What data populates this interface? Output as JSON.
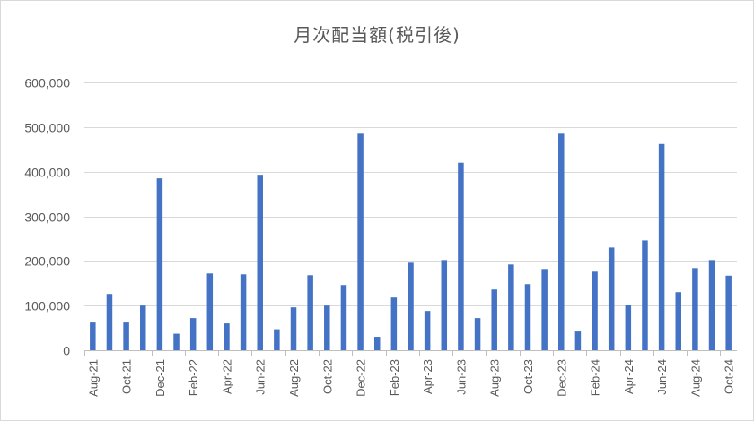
{
  "chart_data": {
    "type": "bar",
    "title": "月次配当額(税引後)",
    "xlabel": "",
    "ylabel": "",
    "ylim": [
      0,
      600000
    ],
    "yticks": [
      0,
      100000,
      200000,
      300000,
      400000,
      500000,
      600000
    ],
    "ytick_labels": [
      "0",
      "100,000",
      "200,000",
      "300,000",
      "400,000",
      "500,000",
      "600,000"
    ],
    "grid": true,
    "legend": "none",
    "bar_color": "#4472c4",
    "categories": [
      "Aug-21",
      "Sep-21",
      "Oct-21",
      "Nov-21",
      "Dec-21",
      "Jan-22",
      "Feb-22",
      "Mar-22",
      "Apr-22",
      "May-22",
      "Jun-22",
      "Jul-22",
      "Aug-22",
      "Sep-22",
      "Oct-22",
      "Nov-22",
      "Dec-22",
      "Jan-23",
      "Feb-23",
      "Mar-23",
      "Apr-23",
      "May-23",
      "Jun-23",
      "Jul-23",
      "Aug-23",
      "Sep-23",
      "Oct-23",
      "Nov-23",
      "Dec-23",
      "Jan-24",
      "Feb-24",
      "Mar-24",
      "Apr-24",
      "May-24",
      "Jun-24",
      "Jul-24",
      "Aug-24",
      "Sep-24",
      "Oct-24"
    ],
    "x_tick_labels": [
      "Aug-21",
      "",
      "Oct-21",
      "",
      "Dec-21",
      "",
      "Feb-22",
      "",
      "Apr-22",
      "",
      "Jun-22",
      "",
      "Aug-22",
      "",
      "Oct-22",
      "",
      "Dec-22",
      "",
      "Feb-23",
      "",
      "Apr-23",
      "",
      "Jun-23",
      "",
      "Aug-23",
      "",
      "Oct-23",
      "",
      "Dec-23",
      "",
      "Feb-24",
      "",
      "Apr-24",
      "",
      "Jun-24",
      "",
      "Aug-24",
      "",
      "Oct-24"
    ],
    "values": [
      62000,
      126000,
      62000,
      100000,
      385000,
      37000,
      72000,
      172000,
      60000,
      170000,
      393000,
      47000,
      96000,
      168000,
      100000,
      146000,
      485000,
      30000,
      118000,
      196000,
      88000,
      202000,
      420000,
      72000,
      136000,
      192000,
      148000,
      182000,
      485000,
      42000,
      176000,
      230000,
      102000,
      246000,
      462000,
      130000,
      184000,
      202000,
      167000
    ]
  }
}
